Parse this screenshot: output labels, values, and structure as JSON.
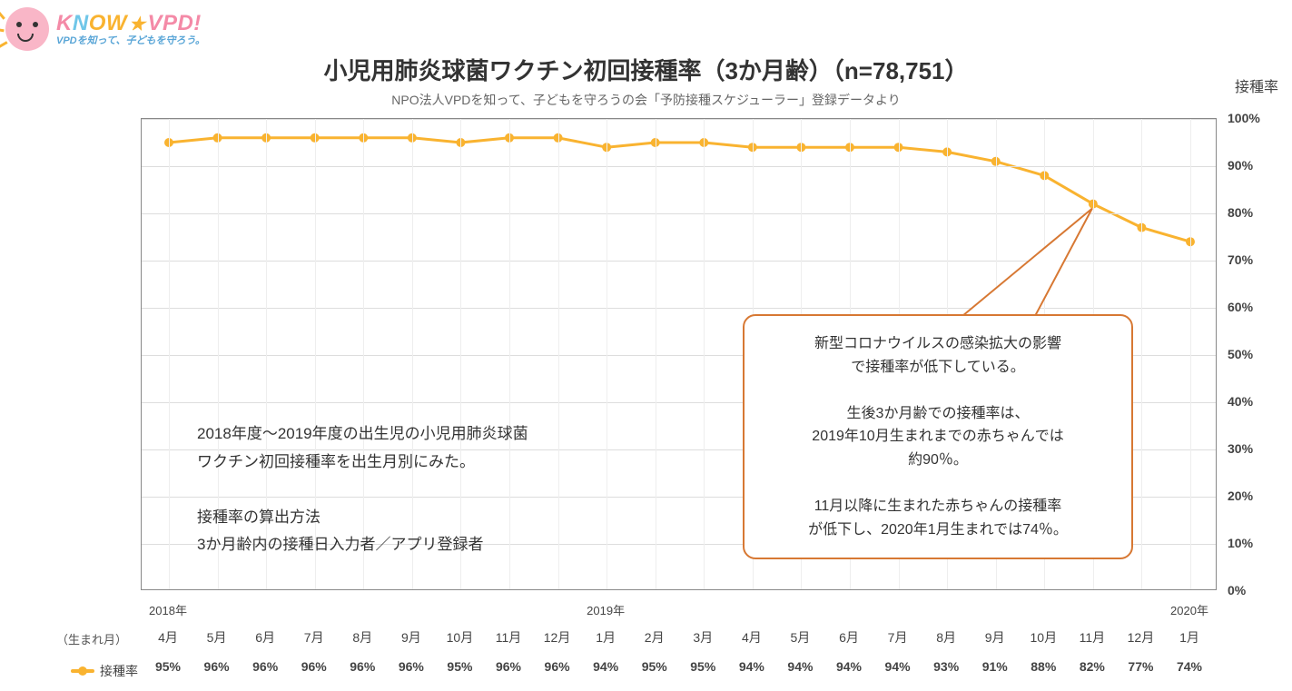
{
  "logo": {
    "main": "KNOW★VPD!",
    "sub": "VPDを知って、子どもを守ろう。"
  },
  "title": "小児用肺炎球菌ワクチン初回接種率（3か月齢）（n=78,751）",
  "subtitle": "NPO法人VPDを知って、子どもを守ろうの会「予防接種スケジューラー」登録データより",
  "yaxis": {
    "title": "接種率"
  },
  "birth_month_label": "（生まれ月）",
  "legend_label": "接種率",
  "chart": {
    "type": "line",
    "line_color": "#f9b330",
    "line_width": 3,
    "marker_color": "#f9b330",
    "marker_radius": 5,
    "background_color": "#ffffff",
    "grid_color": "#dddddd",
    "border_color": "#888888",
    "ylim": [
      0,
      100
    ],
    "ytick_step": 10,
    "yticks": [
      "0%",
      "10%",
      "20%",
      "30%",
      "40%",
      "50%",
      "60%",
      "70%",
      "80%",
      "90%",
      "100%"
    ],
    "title_fontsize": 26,
    "subtitle_fontsize": 14,
    "axis_label_fontsize": 14,
    "years": [
      {
        "at_index": 0,
        "label": "2018年"
      },
      {
        "at_index": 9,
        "label": "2019年"
      },
      {
        "at_index": 21,
        "label": "2020年"
      }
    ],
    "points": [
      {
        "month": "4月",
        "pct": 95,
        "label": "95%"
      },
      {
        "month": "5月",
        "pct": 96,
        "label": "96%"
      },
      {
        "month": "6月",
        "pct": 96,
        "label": "96%"
      },
      {
        "month": "7月",
        "pct": 96,
        "label": "96%"
      },
      {
        "month": "8月",
        "pct": 96,
        "label": "96%"
      },
      {
        "month": "9月",
        "pct": 96,
        "label": "96%"
      },
      {
        "month": "10月",
        "pct": 95,
        "label": "95%"
      },
      {
        "month": "11月",
        "pct": 96,
        "label": "96%"
      },
      {
        "month": "12月",
        "pct": 96,
        "label": "96%"
      },
      {
        "month": "1月",
        "pct": 94,
        "label": "94%"
      },
      {
        "month": "2月",
        "pct": 95,
        "label": "95%"
      },
      {
        "month": "3月",
        "pct": 95,
        "label": "95%"
      },
      {
        "month": "4月",
        "pct": 94,
        "label": "94%"
      },
      {
        "month": "5月",
        "pct": 94,
        "label": "94%"
      },
      {
        "month": "6月",
        "pct": 94,
        "label": "94%"
      },
      {
        "month": "7月",
        "pct": 94,
        "label": "94%"
      },
      {
        "month": "8月",
        "pct": 93,
        "label": "93%"
      },
      {
        "month": "9月",
        "pct": 91,
        "label": "91%"
      },
      {
        "month": "10月",
        "pct": 88,
        "label": "88%"
      },
      {
        "month": "11月",
        "pct": 82,
        "label": "82%"
      },
      {
        "month": "12月",
        "pct": 77,
        "label": "77%"
      },
      {
        "month": "1月",
        "pct": 74,
        "label": "74%"
      }
    ]
  },
  "note": {
    "line1": "2018年度〜2019年度の出生児の小児用肺炎球菌",
    "line2": "ワクチン初回接種率を出生月別にみた。",
    "line3": "",
    "line4": "接種率の算出方法",
    "line5": "3か月齢内の接種日入力者／アプリ登録者"
  },
  "callout": {
    "border_color": "#d77833",
    "anchor_point_index": 19,
    "line1": "新型コロナウイルスの感染拡大の影響",
    "line2": "で接種率が低下している。",
    "line3": "",
    "line4": "生後3か月齢での接種率は、",
    "line5": "2019年10月生まれまでの赤ちゃんでは",
    "line6": "約90％。",
    "line7": "",
    "line8": "11月以降に生まれた赤ちゃんの接種率",
    "line9": "が低下し、2020年1月生まれでは74％。"
  }
}
